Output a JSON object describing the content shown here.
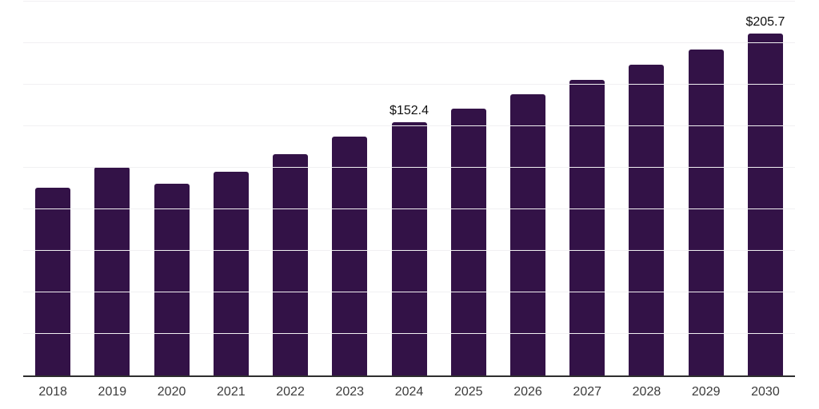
{
  "chart_data": {
    "type": "bar",
    "title": "",
    "xlabel": "",
    "ylabel": "",
    "categories": [
      "2018",
      "2019",
      "2020",
      "2021",
      "2022",
      "2023",
      "2024",
      "2025",
      "2026",
      "2027",
      "2028",
      "2029",
      "2030"
    ],
    "values": [
      112.9,
      125.5,
      115.3,
      122.5,
      133.3,
      143.8,
      152.4,
      160.6,
      169.2,
      177.8,
      187.0,
      196.3,
      205.7
    ],
    "value_prefix": "$",
    "data_labels": {
      "2024": "$152.4",
      "2030": "$205.7"
    },
    "ylim": [
      0,
      225
    ],
    "grid_step": 25,
    "grid": "on",
    "legend": "none"
  },
  "colors": {
    "bar": "#331247",
    "gridline": "#f1f0f2",
    "axis_line": "#2e2e2e",
    "tick_label": "#3b3b3b",
    "data_label": "#111111",
    "background": "#ffffff"
  }
}
